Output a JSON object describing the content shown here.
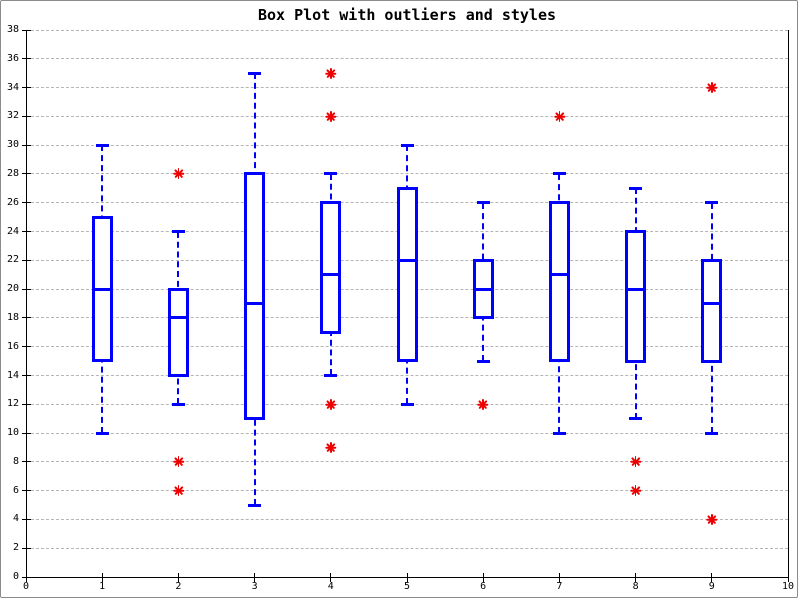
{
  "title": "Box Plot with outliers and styles",
  "colors": {
    "box": "#0000ff",
    "outlier": "#ee0000",
    "grid": "#b5b5b5",
    "axis": "#000000",
    "background": "#ffffff"
  },
  "chart_data": {
    "type": "boxplot",
    "title": "Box Plot with outliers and styles",
    "xlabel": "",
    "ylabel": "",
    "xlim": [
      0,
      10
    ],
    "ylim": [
      0,
      38
    ],
    "x_ticks": [
      0,
      1,
      2,
      3,
      4,
      5,
      6,
      7,
      8,
      9,
      10
    ],
    "y_ticks": [
      0,
      2,
      4,
      6,
      8,
      10,
      12,
      14,
      16,
      18,
      20,
      22,
      24,
      26,
      28,
      30,
      32,
      34,
      36,
      38
    ],
    "grid": "horizontal-dashed",
    "legend": "none",
    "series": [
      {
        "x": 1,
        "whisker_low": 10,
        "q1": 15,
        "median": 20,
        "q3": 25,
        "whisker_high": 30,
        "outliers": []
      },
      {
        "x": 2,
        "whisker_low": 12,
        "q1": 14,
        "median": 18,
        "q3": 20,
        "whisker_high": 24,
        "outliers": [
          28,
          8,
          6
        ]
      },
      {
        "x": 3,
        "whisker_low": 5,
        "q1": 11,
        "median": 19,
        "q3": 28,
        "whisker_high": 35,
        "outliers": []
      },
      {
        "x": 4,
        "whisker_low": 14,
        "q1": 17,
        "median": 21,
        "q3": 26,
        "whisker_high": 28,
        "outliers": [
          35,
          32,
          12,
          9
        ]
      },
      {
        "x": 5,
        "whisker_low": 12,
        "q1": 15,
        "median": 22,
        "q3": 27,
        "whisker_high": 30,
        "outliers": []
      },
      {
        "x": 6,
        "whisker_low": 15,
        "q1": 18,
        "median": 20,
        "q3": 22,
        "whisker_high": 26,
        "outliers": [
          12
        ]
      },
      {
        "x": 7,
        "whisker_low": 10,
        "q1": 15,
        "median": 21,
        "q3": 26,
        "whisker_high": 28,
        "outliers": [
          32
        ]
      },
      {
        "x": 8,
        "whisker_low": 11,
        "q1": 15,
        "median": 20,
        "q3": 24,
        "whisker_high": 27,
        "outliers": [
          8,
          6
        ]
      },
      {
        "x": 9,
        "whisker_low": 10,
        "q1": 15,
        "median": 19,
        "q3": 22,
        "whisker_high": 26,
        "outliers": [
          34,
          4
        ]
      }
    ]
  }
}
